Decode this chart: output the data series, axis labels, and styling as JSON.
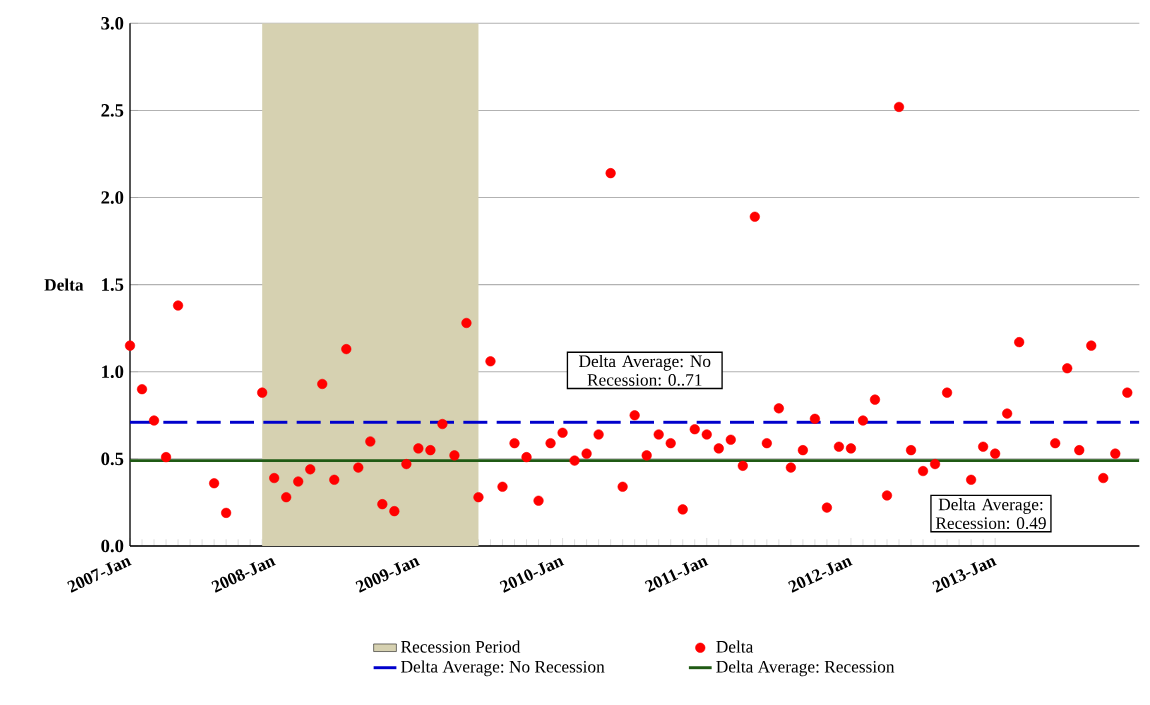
{
  "chart_data": {
    "type": "scatter",
    "ylabel": "Delta",
    "x": [
      "2007-01",
      "2007-02",
      "2007-03",
      "2007-04",
      "2007-05",
      "2007-08",
      "2007-09",
      "2007-12",
      "2008-01",
      "2008-02",
      "2008-03",
      "2008-04",
      "2008-05",
      "2008-06",
      "2008-07",
      "2008-08",
      "2008-09",
      "2008-10",
      "2008-11",
      "2008-12",
      "2009-01",
      "2009-02",
      "2009-03",
      "2009-04",
      "2009-05",
      "2009-06",
      "2009-07",
      "2009-08",
      "2009-09",
      "2009-10",
      "2009-11",
      "2009-12",
      "2010-01",
      "2010-02",
      "2010-03",
      "2010-04",
      "2010-05",
      "2010-06",
      "2010-07",
      "2010-08",
      "2010-09",
      "2010-10",
      "2010-11",
      "2010-12",
      "2011-01",
      "2011-02",
      "2011-03",
      "2011-04",
      "2011-05",
      "2011-06",
      "2011-07",
      "2011-08",
      "2011-09",
      "2011-10",
      "2011-11",
      "2011-12",
      "2012-01",
      "2012-02",
      "2012-03",
      "2012-04",
      "2012-05",
      "2012-06",
      "2012-07",
      "2012-08",
      "2012-09",
      "2012-11",
      "2012-12",
      "2013-01",
      "2013-02",
      "2013-03",
      "2013-06",
      "2013-07",
      "2013-08",
      "2013-09",
      "2013-10",
      "2013-11",
      "2013-12"
    ],
    "series": [
      {
        "name": "Delta",
        "color": "#ff0000",
        "values": [
          1.15,
          0.9,
          0.72,
          0.51,
          1.38,
          0.36,
          0.19,
          0.88,
          0.39,
          0.28,
          0.37,
          0.44,
          0.93,
          0.38,
          1.13,
          0.45,
          0.6,
          0.24,
          0.2,
          0.47,
          0.56,
          0.55,
          0.7,
          0.52,
          1.28,
          0.28,
          1.06,
          0.34,
          0.59,
          0.51,
          0.26,
          0.59,
          0.65,
          0.49,
          0.53,
          0.64,
          2.14,
          0.34,
          0.75,
          0.52,
          0.64,
          0.59,
          0.21,
          0.67,
          0.64,
          0.56,
          0.61,
          0.46,
          1.89,
          0.59,
          0.79,
          0.45,
          0.55,
          0.73,
          0.22,
          0.57,
          0.56,
          0.72,
          0.84,
          0.29,
          2.52,
          0.55,
          0.43,
          0.47,
          0.88,
          0.38,
          0.57,
          0.53,
          0.76,
          1.17,
          0.59,
          1.02,
          0.55,
          1.15,
          0.39,
          0.53,
          0.88
        ]
      }
    ],
    "xlim": [
      "2007-01",
      "2014-01"
    ],
    "xticks": [
      {
        "value": "2007-01",
        "label": "2007-Jan"
      },
      {
        "value": "2008-01",
        "label": "2008-Jan"
      },
      {
        "value": "2009-01",
        "label": "2009-Jan"
      },
      {
        "value": "2010-01",
        "label": "2010-Jan"
      },
      {
        "value": "2011-01",
        "label": "2011-Jan"
      },
      {
        "value": "2012-01",
        "label": "2012-Jan"
      },
      {
        "value": "2013-01",
        "label": "2013-Jan"
      }
    ],
    "ylim": [
      0,
      3
    ],
    "yticks": [
      {
        "value": 0,
        "label": "0.0"
      },
      {
        "value": 0.5,
        "label": "0.5"
      },
      {
        "value": 1,
        "label": "1.0"
      },
      {
        "value": 1.5,
        "label": "1.5"
      },
      {
        "value": 2,
        "label": "2.0"
      },
      {
        "value": 2.5,
        "label": "2.5"
      },
      {
        "value": 3,
        "label": "3.0"
      }
    ],
    "bands": [
      {
        "axis": "x",
        "from": "2007-12",
        "to": "2009-06",
        "label": "Recession Period",
        "color": "#d6d1b1"
      }
    ],
    "ref_lines": [
      {
        "axis": "y",
        "value": 0.71,
        "label": "Delta Average: No Recession",
        "color": "#0000cc",
        "line_style": "dashed"
      },
      {
        "axis": "y",
        "value": 0.49,
        "label": "Delta Average: Recession",
        "color": "#1f5a14",
        "line_style": "solid"
      }
    ],
    "annotations": [
      "Delta Average: No Recession: 0..71",
      "Delta Average: Recession: 0.49"
    ],
    "marker": "circle",
    "grid": "y",
    "legend": "bottom"
  }
}
